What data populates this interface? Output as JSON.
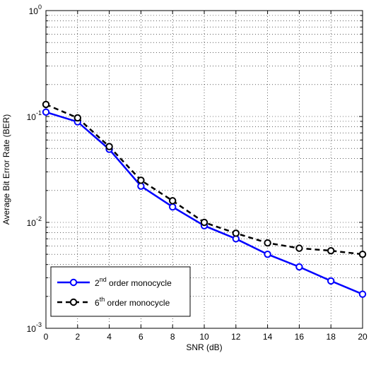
{
  "chart_data": {
    "type": "line",
    "xlabel": "SNR (dB)",
    "ylabel": "Average Bit Error Rate (BER)",
    "y_scale": "log",
    "xlim": [
      0,
      20
    ],
    "ylim": [
      0.001,
      1
    ],
    "grid": true,
    "legend_position": "bottom-left",
    "x_ticks": [
      "0",
      "2",
      "4",
      "6",
      "8",
      "10",
      "12",
      "14",
      "16",
      "18",
      "20"
    ],
    "y_ticks": [
      {
        "base": "10",
        "exp": "-3"
      },
      {
        "base": "10",
        "exp": "-2"
      },
      {
        "base": "10",
        "exp": "-1"
      },
      {
        "base": "10",
        "exp": "0"
      }
    ],
    "x": [
      0,
      2,
      4,
      6,
      8,
      10,
      12,
      14,
      16,
      18,
      20
    ],
    "series": [
      {
        "name_parts": [
          "2",
          "nd",
          " order monocycle"
        ],
        "values": [
          0.11,
          0.089,
          0.049,
          0.022,
          0.014,
          0.0093,
          0.007,
          0.005,
          0.0038,
          0.0028,
          0.0021
        ],
        "color": "#0000ff",
        "line_style": "solid",
        "marker": "circle"
      },
      {
        "name_parts": [
          "6",
          "th",
          " order monocycle"
        ],
        "values": [
          0.13,
          0.097,
          0.052,
          0.025,
          0.016,
          0.01,
          0.0079,
          0.0064,
          0.0057,
          0.0054,
          0.005
        ],
        "color": "#000000",
        "line_style": "dashed",
        "marker": "circle"
      }
    ]
  }
}
